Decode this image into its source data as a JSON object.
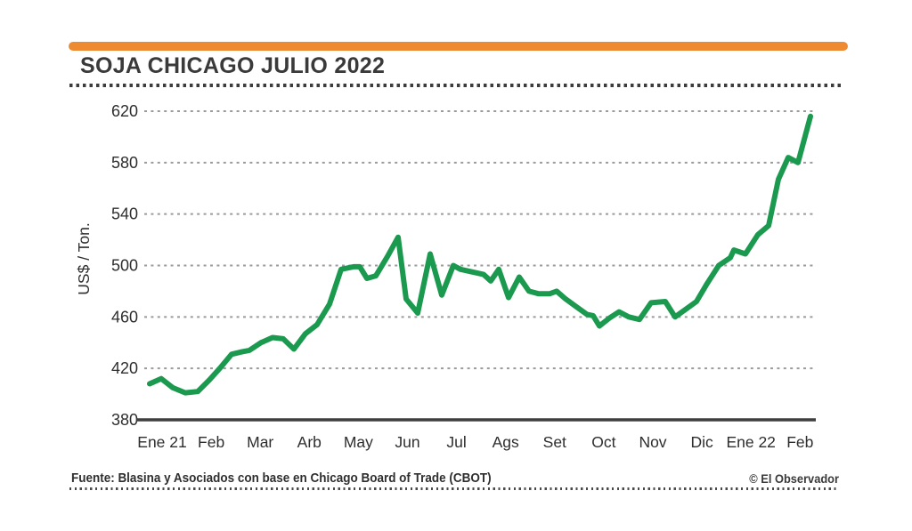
{
  "header": {
    "accent_bar_color": "#EE8A31",
    "title": "SOJA CHICAGO JULIO 2022"
  },
  "footer": {
    "source": "Fuente: Blasina y Asociados con base en Chicago Board of Trade (CBOT)",
    "credit": "© El Observador"
  },
  "chart_data": {
    "type": "line",
    "title": "SOJA CHICAGO JULIO 2022",
    "ylabel": "US$ / Ton.",
    "ylim": [
      380,
      620
    ],
    "y_ticks": [
      620,
      580,
      540,
      500,
      460,
      420,
      380
    ],
    "x_tick_labels": [
      "Ene 21",
      "Feb",
      "Mar",
      "Arb",
      "May",
      "Jun",
      "Jul",
      "Ags",
      "Set",
      "Oct",
      "Nov",
      "Dic",
      "Ene 22",
      "Feb"
    ],
    "grid": "horizontal-dotted",
    "legend": "none",
    "line_color": "#1B9A4F",
    "axis_color": "#3E3E3E",
    "grid_color": "#9b9b9b",
    "x_unit": "screenshot_px",
    "points": [
      [
        168,
        408
      ],
      [
        181,
        412
      ],
      [
        194,
        405
      ],
      [
        208,
        401
      ],
      [
        222,
        402
      ],
      [
        235,
        411
      ],
      [
        248,
        421
      ],
      [
        260,
        431
      ],
      [
        272,
        433
      ],
      [
        280,
        434
      ],
      [
        293,
        440
      ],
      [
        306,
        444
      ],
      [
        318,
        443
      ],
      [
        330,
        435
      ],
      [
        343,
        447
      ],
      [
        356,
        454
      ],
      [
        370,
        470
      ],
      [
        383,
        497
      ],
      [
        397,
        499
      ],
      [
        404,
        499
      ],
      [
        412,
        490
      ],
      [
        422,
        492
      ],
      [
        435,
        507
      ],
      [
        447,
        522
      ],
      [
        456,
        474
      ],
      [
        469,
        463
      ],
      [
        483,
        509
      ],
      [
        496,
        477
      ],
      [
        509,
        500
      ],
      [
        517,
        497
      ],
      [
        530,
        495
      ],
      [
        543,
        493
      ],
      [
        551,
        488
      ],
      [
        560,
        497
      ],
      [
        571,
        475
      ],
      [
        583,
        491
      ],
      [
        594,
        480
      ],
      [
        605,
        478
      ],
      [
        617,
        478
      ],
      [
        625,
        480
      ],
      [
        635,
        474
      ],
      [
        647,
        468
      ],
      [
        659,
        462
      ],
      [
        666,
        461
      ],
      [
        673,
        453
      ],
      [
        684,
        459
      ],
      [
        695,
        464
      ],
      [
        706,
        460
      ],
      [
        718,
        458
      ],
      [
        731,
        471
      ],
      [
        747,
        472
      ],
      [
        758,
        460
      ],
      [
        770,
        466
      ],
      [
        782,
        472
      ],
      [
        794,
        486
      ],
      [
        807,
        500
      ],
      [
        820,
        506
      ],
      [
        824,
        512
      ],
      [
        837,
        509
      ],
      [
        851,
        524
      ],
      [
        863,
        531
      ],
      [
        874,
        567
      ],
      [
        885,
        584
      ],
      [
        896,
        580
      ],
      [
        910,
        616
      ]
    ]
  }
}
